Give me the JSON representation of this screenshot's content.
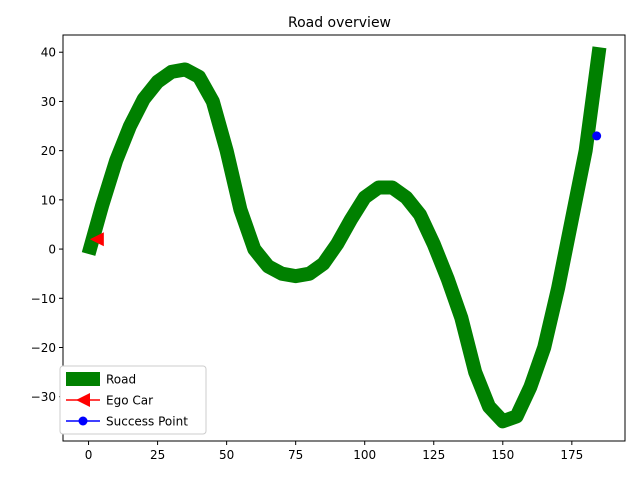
{
  "chart_data": {
    "type": "line",
    "title": "Road overview",
    "xlabel": "",
    "ylabel": "",
    "xlim": [
      -9.25,
      194.25
    ],
    "ylim": [
      -39.0,
      43.5
    ],
    "x_ticks": [
      0,
      25,
      50,
      75,
      100,
      125,
      150,
      175
    ],
    "y_ticks": [
      -30,
      -20,
      -10,
      0,
      10,
      20,
      30,
      40
    ],
    "grid": false,
    "legend": {
      "placement": "lower-left",
      "entries": [
        "Road",
        "Ego Car",
        "Success Point"
      ]
    },
    "series": [
      {
        "name": "Road",
        "color": "#008000",
        "style": "thick-line",
        "points": [
          [
            0,
            -1
          ],
          [
            5,
            9
          ],
          [
            10,
            18
          ],
          [
            15,
            25
          ],
          [
            20,
            30.5
          ],
          [
            25,
            34
          ],
          [
            30,
            36
          ],
          [
            35,
            36.5
          ],
          [
            40,
            35
          ],
          [
            45,
            30
          ],
          [
            50,
            20
          ],
          [
            55,
            8
          ],
          [
            60,
            0
          ],
          [
            65,
            -3.5
          ],
          [
            70,
            -5
          ],
          [
            75,
            -5.5
          ],
          [
            80,
            -5
          ],
          [
            85,
            -3
          ],
          [
            90,
            1
          ],
          [
            95,
            6
          ],
          [
            100,
            10.5
          ],
          [
            105,
            12.5
          ],
          [
            110,
            12.5
          ],
          [
            115,
            10.5
          ],
          [
            120,
            7
          ],
          [
            125,
            1
          ],
          [
            130,
            -6
          ],
          [
            135,
            -14
          ],
          [
            140,
            -25
          ],
          [
            145,
            -32
          ],
          [
            150,
            -35
          ],
          [
            155,
            -34
          ],
          [
            160,
            -28
          ],
          [
            165,
            -20
          ],
          [
            170,
            -8
          ],
          [
            175,
            6
          ],
          [
            180,
            20
          ],
          [
            185,
            41
          ]
        ]
      },
      {
        "name": "Ego Car",
        "color": "#ff0000",
        "marker": "triangle-left",
        "points": [
          [
            3,
            2
          ]
        ]
      },
      {
        "name": "Success Point",
        "color": "#0000ff",
        "marker": "circle",
        "points": [
          [
            184,
            23
          ]
        ]
      }
    ]
  }
}
